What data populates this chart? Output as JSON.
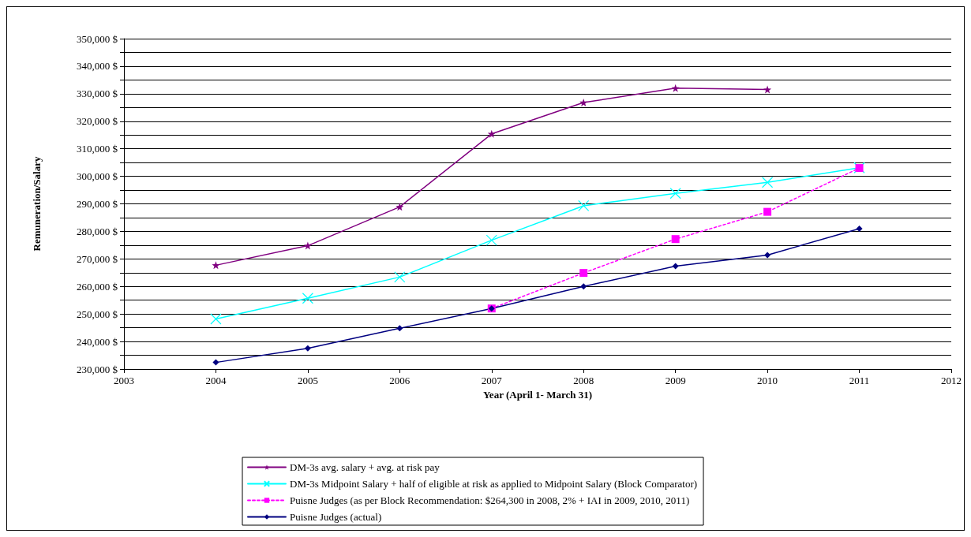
{
  "chart_data": {
    "type": "line",
    "xlabel": "Year (April 1- March 31)",
    "ylabel": "Remuneration/Salary",
    "xlim": [
      2003,
      2012
    ],
    "xticks": [
      2003,
      2004,
      2005,
      2006,
      2007,
      2008,
      2009,
      2010,
      2011,
      2012
    ],
    "ylim": [
      230000,
      350000
    ],
    "yticks": [
      {
        "value": 230000,
        "label": "230,000 $"
      },
      {
        "value": 235000,
        "label": null
      },
      {
        "value": 240000,
        "label": "240,000 $"
      },
      {
        "value": 245000,
        "label": null
      },
      {
        "value": 250000,
        "label": "250,000 $"
      },
      {
        "value": 255000,
        "label": null
      },
      {
        "value": 260000,
        "label": "260,000 $"
      },
      {
        "value": 265000,
        "label": null
      },
      {
        "value": 270000,
        "label": "270,000 $"
      },
      {
        "value": 275000,
        "label": null
      },
      {
        "value": 280000,
        "label": "280,000 $"
      },
      {
        "value": 285000,
        "label": null
      },
      {
        "value": 290000,
        "label": "290,000 $"
      },
      {
        "value": 295000,
        "label": null
      },
      {
        "value": 300000,
        "label": "300,000 $"
      },
      {
        "value": 305000,
        "label": null
      },
      {
        "value": 310000,
        "label": "310,000 $"
      },
      {
        "value": 315000,
        "label": null
      },
      {
        "value": 320000,
        "label": "320,000 $"
      },
      {
        "value": 325000,
        "label": null
      },
      {
        "value": 330000,
        "label": "330,000 $"
      },
      {
        "value": 335000,
        "label": null
      },
      {
        "value": 340000,
        "label": "340,000 $"
      },
      {
        "value": 345000,
        "label": null
      },
      {
        "value": 350000,
        "label": "350,000 $"
      }
    ],
    "grid": "y",
    "legend": "bottom",
    "series": [
      {
        "name": "DM-3s avg. salary + avg. at risk pay",
        "color": "#800080",
        "marker": "star",
        "line_style": "solid",
        "x": [
          2004,
          2005,
          2006,
          2007,
          2008,
          2009,
          2010
        ],
        "values": [
          267700,
          274800,
          288900,
          315400,
          326800,
          332000,
          331500
        ]
      },
      {
        "name": "DM-3s Midpoint Salary + half of eligible at risk as applied to Midpoint Salary (Block Comparator)",
        "color": "#00ffff",
        "marker": "cross",
        "line_style": "solid",
        "x": [
          2004,
          2005,
          2006,
          2007,
          2008,
          2009,
          2010,
          2011
        ],
        "values": [
          248200,
          255700,
          263400,
          276800,
          289300,
          293800,
          297800,
          303100
        ]
      },
      {
        "name": "Puisne Judges (as per Block Recommendation: $264,300 in 2008, 2% + IAI in 2009, 2010, 2011)",
        "color": "#ff00ff",
        "marker": "square",
        "line_style": "dashed",
        "x": [
          2007,
          2008,
          2009,
          2010,
          2011
        ],
        "values": [
          252000,
          264900,
          277200,
          287100,
          303000
        ]
      },
      {
        "name": "Puisne Judges (actual)",
        "color": "#000080",
        "marker": "diamond",
        "line_style": "solid",
        "x": [
          2004,
          2005,
          2006,
          2007,
          2008,
          2009,
          2010,
          2011
        ],
        "values": [
          232400,
          237500,
          244800,
          252000,
          260000,
          267400,
          271400,
          281000
        ]
      }
    ]
  }
}
